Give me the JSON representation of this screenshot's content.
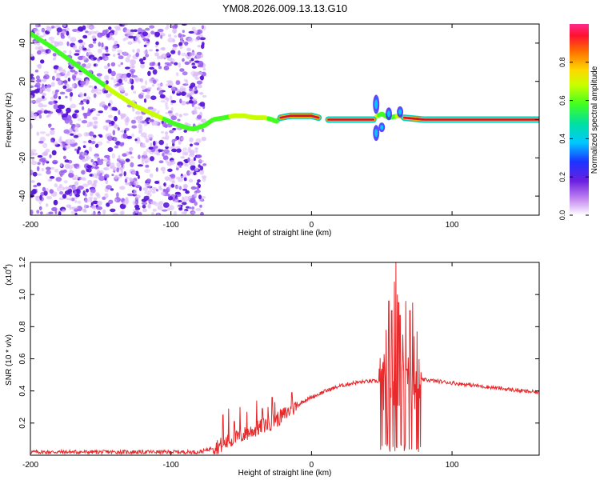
{
  "figure_title": "YM08.2026.009.13.13.G10",
  "colors": {
    "snr_line": "#e8282a",
    "scatter": "#7a2fe6",
    "ridge_high": "#d0103a"
  },
  "chart_data": [
    {
      "type": "heatmap",
      "name": "spectrogram",
      "title": "",
      "xlabel": "Height of straight line (km)",
      "ylabel": "Frequency (Hz)",
      "xlim": [
        -200,
        162
      ],
      "ylim": [
        -50,
        50
      ],
      "x_ticks": [
        -200,
        -100,
        0,
        100
      ],
      "x_tick_labels": [
        "-200",
        "-100",
        "0",
        "100"
      ],
      "y_ticks": [
        -40,
        -20,
        0,
        20,
        40
      ],
      "y_tick_labels": [
        "-40",
        "-20",
        "0",
        "20",
        "40"
      ],
      "colorbar": {
        "label": "Normalized spectral amplitude",
        "range": [
          0.0,
          1.0
        ],
        "ticks": [
          0.0,
          0.2,
          0.4,
          0.6,
          0.8
        ],
        "tick_labels": [
          "0.0",
          "0.2",
          "0.4",
          "0.6",
          "0.8"
        ]
      },
      "noise_region_x": [
        -200,
        -76
      ],
      "ridge": {
        "x": [
          -200,
          -185,
          -170,
          -155,
          -140,
          -125,
          -110,
          -98,
          -90,
          -84,
          -80,
          -76,
          -70,
          -62,
          -55,
          -48,
          -40,
          -33,
          -28,
          -25,
          -22,
          -15,
          -8,
          0,
          10,
          30,
          44,
          47,
          50,
          55,
          62,
          66,
          80,
          100,
          130,
          162
        ],
        "y": [
          45,
          38,
          30,
          22,
          14,
          7,
          2,
          -2,
          -4,
          -5,
          -4,
          -3,
          0,
          1,
          2,
          2,
          1,
          1,
          0,
          -1,
          1,
          2,
          2,
          2,
          0,
          0,
          0,
          2,
          3,
          1,
          2,
          1,
          0,
          0,
          0,
          0
        ],
        "amplitude": [
          0.5,
          0.55,
          0.55,
          0.55,
          0.6,
          0.6,
          0.6,
          0.55,
          0.5,
          0.5,
          0.55,
          0.5,
          0.5,
          0.55,
          0.6,
          0.6,
          0.6,
          0.6,
          0.55,
          0.5,
          0.6,
          0.8,
          0.9,
          0.9,
          0.95,
          0.95,
          0.9,
          0.6,
          0.5,
          0.5,
          0.6,
          0.9,
          0.95,
          0.95,
          0.95,
          0.95
        ]
      }
    },
    {
      "type": "line",
      "name": "snr",
      "title": "",
      "xlabel": "Height of straight line (km)",
      "ylabel": "SNR (10 * v/v)",
      "y_multiplier_label": "(x10",
      "y_multiplier_exp": "4",
      "xlim": [
        -200,
        162
      ],
      "ylim": [
        0,
        1.2
      ],
      "x_ticks": [
        -200,
        -100,
        0,
        100
      ],
      "x_tick_labels": [
        "-200",
        "-100",
        "0",
        "100"
      ],
      "y_ticks": [
        0.2,
        0.4,
        0.6,
        0.8,
        1.0,
        1.2
      ],
      "y_tick_labels": [
        "0.2",
        "0.4",
        "0.6",
        "0.8",
        "1.0",
        "1.2"
      ],
      "envelope": {
        "x": [
          -200,
          -150,
          -100,
          -80,
          -75,
          -70,
          -65,
          -60,
          -55,
          -50,
          -45,
          -40,
          -35,
          -30,
          -25,
          -20,
          -15,
          -10,
          -5,
          0,
          10,
          20,
          30,
          40,
          50,
          55,
          60,
          65,
          70,
          75,
          80,
          90,
          100,
          110,
          120,
          130,
          140,
          150,
          162
        ],
        "y": [
          0.02,
          0.02,
          0.02,
          0.02,
          0.03,
          0.05,
          0.06,
          0.08,
          0.1,
          0.12,
          0.14,
          0.16,
          0.18,
          0.2,
          0.22,
          0.25,
          0.28,
          0.31,
          0.34,
          0.36,
          0.4,
          0.43,
          0.45,
          0.46,
          0.46,
          0.45,
          0.44,
          0.44,
          0.45,
          0.46,
          0.47,
          0.46,
          0.45,
          0.44,
          0.43,
          0.42,
          0.41,
          0.4,
          0.39
        ]
      },
      "spikes": {
        "x": [
          -63,
          -59,
          -55,
          -51,
          -46,
          -39,
          -35,
          -31,
          -28,
          -26,
          -14,
          51,
          53,
          55,
          57,
          59,
          60,
          61,
          62,
          63,
          65,
          67,
          70,
          72,
          73,
          75
        ],
        "y": [
          0.25,
          0.29,
          0.21,
          0.3,
          0.27,
          0.34,
          0.29,
          0.3,
          0.36,
          0.33,
          0.39,
          0.58,
          0.78,
          0.96,
          0.9,
          1.08,
          1.2,
          1.0,
          0.95,
          0.87,
          0.75,
          0.96,
          0.9,
          0.95,
          0.74,
          0.77
        ]
      }
    }
  ]
}
